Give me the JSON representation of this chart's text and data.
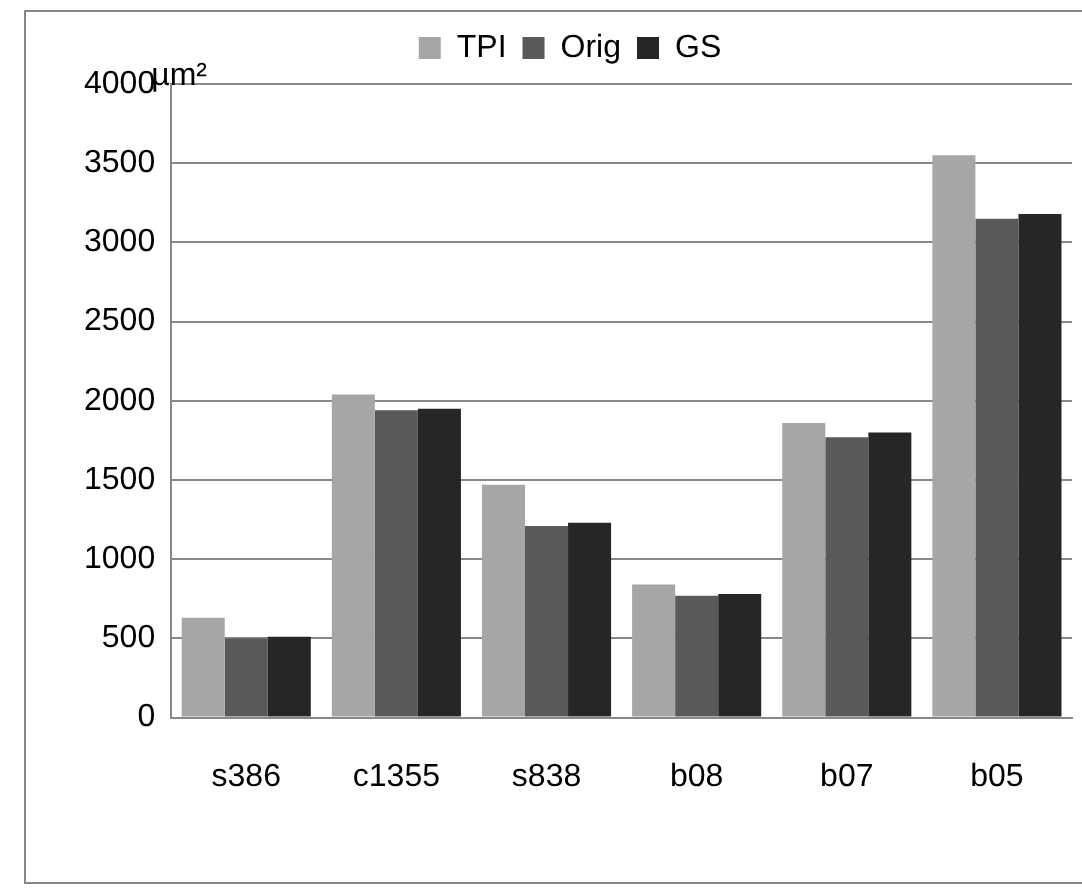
{
  "chart_data": {
    "type": "bar",
    "ylabel": "µm²",
    "categories": [
      "s386",
      "c1355",
      "s838",
      "b08",
      "b07",
      "b05"
    ],
    "series": [
      {
        "name": "TPI",
        "color": "#a6a6a6",
        "values": [
          630,
          2040,
          1470,
          840,
          1860,
          3550
        ]
      },
      {
        "name": "Orig",
        "color": "#595959",
        "values": [
          500,
          1940,
          1210,
          770,
          1770,
          3150
        ]
      },
      {
        "name": "GS",
        "color": "#262626",
        "values": [
          510,
          1950,
          1230,
          780,
          1800,
          3180
        ]
      }
    ],
    "ylim": [
      0,
      4000
    ],
    "yticks": [
      0,
      500,
      1000,
      1500,
      2000,
      2500,
      3000,
      3500,
      4000
    ],
    "grid": "y",
    "legend": "top"
  }
}
